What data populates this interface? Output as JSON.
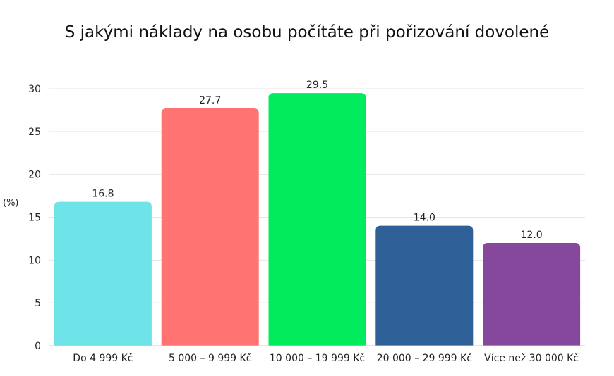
{
  "chart_data": {
    "type": "bar",
    "title": "S jakými náklady na osobu počítáte při pořizování dovolené",
    "ylabel": "(%)",
    "xlabel": "",
    "ylim": [
      0,
      30
    ],
    "yticks": [
      0,
      5,
      10,
      15,
      20,
      25,
      30
    ],
    "grid": true,
    "categories": [
      "Do 4 999 Kč",
      "5 000 – 9 999 Kč",
      "10 000 – 19 999 Kč",
      "20 000 – 29 999 Kč",
      "Více než 30 000 Kč"
    ],
    "values": [
      16.8,
      27.7,
      29.5,
      14.0,
      12.0
    ],
    "value_labels": [
      "16.8",
      "27.7",
      "29.5",
      "14.0",
      "12.0"
    ],
    "colors": [
      "#6ee4e9",
      "#ff7373",
      "#02eb5d",
      "#2e5f96",
      "#85489d"
    ]
  }
}
